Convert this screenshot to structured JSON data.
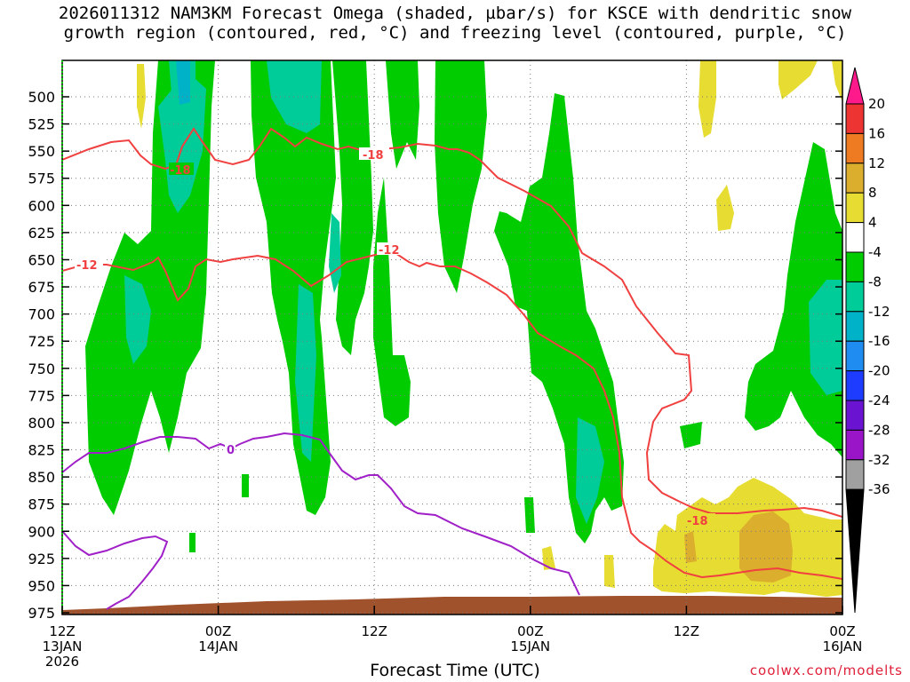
{
  "title_line1": "2026011312 NAM3KM Forecast Omega (shaded, µbar/s) for KSCE with dendritic snow",
  "title_line2": "growth region (contoured, red, °C) and freezing level (contoured, purple, °C)",
  "xaxis_title": "Forecast Time (UTC)",
  "credit": "coolwx.com/modelts",
  "chart_data": {
    "type": "heatmap",
    "y_levels_hpa": [
      500,
      525,
      550,
      575,
      600,
      625,
      650,
      675,
      700,
      725,
      750,
      775,
      800,
      825,
      850,
      875,
      900,
      925,
      950,
      975
    ],
    "x_ticks": [
      {
        "hour": 0,
        "line1": "12Z",
        "line2": "13JAN",
        "line3": "2026"
      },
      {
        "hour": 12,
        "line1": "00Z",
        "line2": "14JAN",
        "line3": ""
      },
      {
        "hour": 24,
        "line1": "12Z",
        "line2": "",
        "line3": ""
      },
      {
        "hour": 36,
        "line1": "00Z",
        "line2": "15JAN",
        "line3": ""
      },
      {
        "hour": 48,
        "line1": "12Z",
        "line2": "",
        "line3": ""
      },
      {
        "hour": 60,
        "line1": "00Z",
        "line2": "16JAN",
        "line3": ""
      }
    ],
    "colorbar": {
      "labels": [
        "20",
        "16",
        "12",
        "8",
        "4",
        "-4",
        "-8",
        "-12",
        "-16",
        "-20",
        "-24",
        "-28",
        "-32",
        "-36"
      ],
      "colors": [
        "#ff1a8c",
        "#ee3333",
        "#ee7b22",
        "#dcae2d",
        "#e6dc32",
        "#ffffff",
        "#00cc00",
        "#00cc9a",
        "#00b2c8",
        "#1e8cf0",
        "#1e3cff",
        "#6a14d2",
        "#9a14c8",
        "#a0a0a0",
        "#000000"
      ]
    },
    "contour_labels": {
      "dgz_upper": "-18",
      "dgz_upper_2": "-18",
      "dgz_lower": "-12",
      "dgz_lower_2": "-12",
      "dgz_lower_right": "-18",
      "freezing": "0"
    },
    "terrain_color": "#a0522d"
  }
}
